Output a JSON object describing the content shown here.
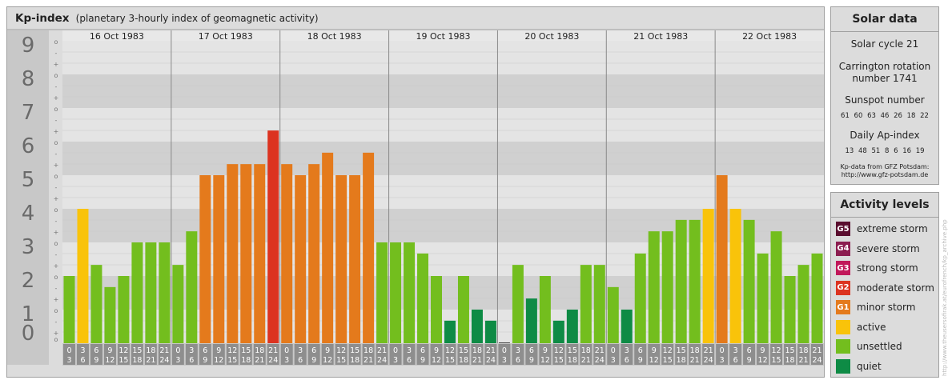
{
  "header": {
    "title": "Kp-index",
    "subtitle": "(planetary 3-hourly index of geomagnetic activity)"
  },
  "chart_data": {
    "type": "bar",
    "title": "Kp-index",
    "ylim": [
      0,
      9
    ],
    "y_ticks": [
      "0",
      "1",
      "2",
      "3",
      "4",
      "5",
      "6",
      "7",
      "8",
      "9"
    ],
    "minor_ticks": [
      "+",
      "o",
      "-"
    ],
    "days": [
      "16 Oct 1983",
      "17 Oct 1983",
      "18 Oct 1983",
      "19 Oct 1983",
      "20 Oct 1983",
      "21 Oct 1983",
      "22 Oct 1983"
    ],
    "interval_starts": [
      "0",
      "3",
      "6",
      "9",
      "12",
      "15",
      "18",
      "21"
    ],
    "interval_ends": [
      "3",
      "6",
      "9",
      "12",
      "15",
      "18",
      "21",
      "24"
    ],
    "values": [
      2.0,
      4.0,
      2.33,
      1.67,
      2.0,
      3.0,
      3.0,
      3.0,
      2.33,
      3.33,
      5.0,
      5.0,
      5.33,
      5.33,
      5.33,
      6.33,
      5.33,
      5.0,
      5.33,
      5.67,
      5.0,
      5.0,
      5.67,
      3.0,
      3.0,
      3.0,
      2.67,
      2.0,
      0.67,
      2.0,
      1.0,
      0.67,
      0.0,
      2.33,
      1.33,
      2.0,
      0.67,
      1.0,
      2.33,
      2.33,
      1.67,
      1.0,
      2.67,
      3.33,
      3.33,
      3.67,
      3.67,
      4.0,
      5.0,
      4.0,
      3.67,
      2.67,
      3.33,
      2.0,
      2.33,
      2.67
    ],
    "colors": {
      "quiet": "#0e8b45",
      "unsettled": "#73be1e",
      "active": "#f9c30a",
      "minor": "#e47a1c",
      "moderate": "#dc3320",
      "strong": "#c1185a",
      "severe": "#8c1d50",
      "extreme": "#5a0d2e"
    }
  },
  "solar": {
    "title": "Solar data",
    "cycle": "Solar cycle 21",
    "carrington_line1": "Carrington rotation",
    "carrington_line2": "number 1741",
    "sunspot_title": "Sunspot number",
    "sunspot_values": "61 60 63 46 26 18 22",
    "ap_title": "Daily Ap-index",
    "ap_values": "13 48 51 8 6 16 19",
    "source_line1": "Kp-data from GFZ Potsdam:",
    "source_line2": "http://www.gfz-potsdam.de"
  },
  "activity": {
    "title": "Activity levels",
    "items": [
      {
        "badge": "G5",
        "label": "extreme storm",
        "color": "#5a0d2e"
      },
      {
        "badge": "G4",
        "label": "severe storm",
        "color": "#8c1d50"
      },
      {
        "badge": "G3",
        "label": "strong storm",
        "color": "#c1185a"
      },
      {
        "badge": "G2",
        "label": "moderate storm",
        "color": "#dc3320"
      },
      {
        "badge": "G1",
        "label": "minor storm",
        "color": "#e47a1c"
      },
      {
        "badge": "",
        "label": "active",
        "color": "#f9c30a"
      },
      {
        "badge": "",
        "label": "unsettled",
        "color": "#73be1e"
      },
      {
        "badge": "",
        "label": "quiet",
        "color": "#0e8b45"
      }
    ]
  },
  "watermark": "http://www.theusersofirak.at/eurofrench/kp_archive.php"
}
